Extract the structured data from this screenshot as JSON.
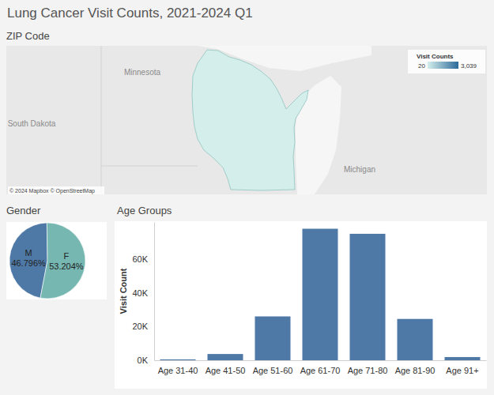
{
  "title": "Lung Cancer Visit Counts, 2021-2024 Q1",
  "chart_data": [
    {
      "type": "map",
      "title": "ZIP Code",
      "labels": [
        "Minnesota",
        "South Dakota",
        "Michigan"
      ],
      "attribution": "© 2024 Mapbox © OpenStreetMap",
      "color_bar": {
        "title": "Visit Counts",
        "range": [
          20,
          3039
        ],
        "ticks": [
          20,
          {
            "value": 3039,
            "label": "3,039"
          }
        ],
        "colors": [
          "#d4eeeb",
          "#2c6a9a"
        ]
      }
    },
    {
      "type": "pie",
      "title": "Gender",
      "categories": [
        "M",
        "F"
      ],
      "values": [
        46.796,
        53.204
      ],
      "value_labels": [
        "46.796%",
        "53.204%"
      ],
      "colors": [
        "#4e79a7",
        "#76b7b2"
      ],
      "data_labels": true
    },
    {
      "type": "bar",
      "title": "Age Groups",
      "categories": [
        "Age 31-40",
        "Age 41-50",
        "Age 51-60",
        "Age 61-70",
        "Age 71-80",
        "Age 81-90",
        "Age 91+"
      ],
      "values": [
        500,
        3700,
        26000,
        78000,
        75000,
        24500,
        1900
      ],
      "color": "#4e79a7",
      "ylabel": "Visit Count",
      "ylim": [
        0,
        82000
      ],
      "yticks": [
        {
          "value": 0,
          "label": "0K"
        },
        {
          "value": 20000,
          "label": "20K"
        },
        {
          "value": 40000,
          "label": "40K"
        },
        {
          "value": 60000,
          "label": "60K"
        }
      ],
      "grid": false
    }
  ]
}
